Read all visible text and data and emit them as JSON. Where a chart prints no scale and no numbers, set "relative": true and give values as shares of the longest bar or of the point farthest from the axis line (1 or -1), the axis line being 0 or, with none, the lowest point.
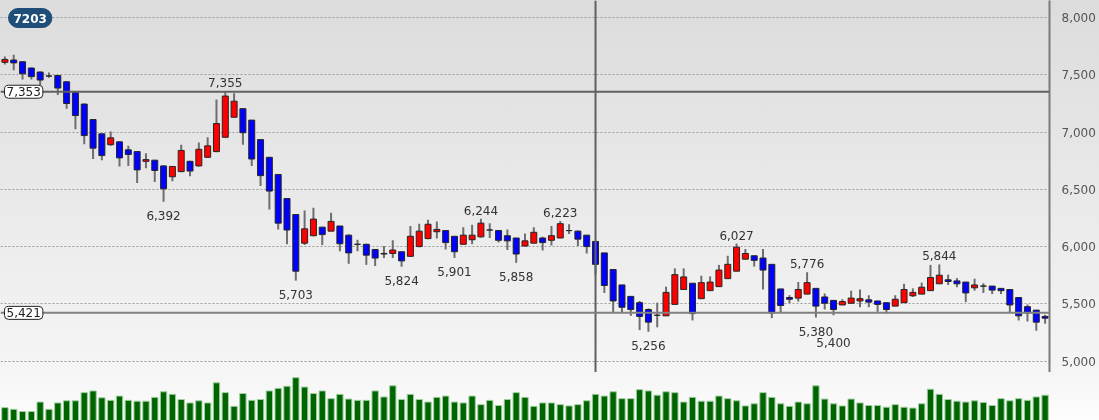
{
  "chart_data": [
    {
      "type": "candlestick",
      "title": "7203",
      "categories": [
        null,
        null,
        null,
        null,
        null,
        null,
        null,
        null,
        null,
        null,
        null,
        null,
        null,
        null,
        null,
        null,
        null,
        null,
        null,
        null,
        null,
        null,
        null,
        null,
        null,
        null,
        null,
        null,
        null,
        null,
        null,
        null,
        null,
        null,
        null,
        null,
        null,
        null,
        null,
        null,
        null,
        null,
        null,
        null,
        null,
        null,
        null,
        null,
        null,
        null,
        null,
        null,
        null,
        null,
        null,
        null,
        null,
        null,
        null,
        null,
        null,
        null,
        null,
        null,
        null,
        null,
        null,
        null,
        null,
        null,
        null,
        null,
        null,
        null,
        null,
        null,
        null,
        null,
        null,
        null,
        null,
        null,
        null,
        null,
        null,
        null,
        null,
        null,
        null,
        null,
        null,
        null,
        null,
        null,
        null,
        null,
        null,
        null,
        null,
        null,
        null,
        null,
        null,
        null,
        null,
        null,
        null,
        null,
        null,
        null,
        null,
        null,
        null,
        null,
        null,
        null,
        null,
        null,
        null
      ],
      "ohlc": [
        [
          7610,
          7660,
          7590,
          7635
        ],
        [
          7630,
          7675,
          7540,
          7605
        ],
        [
          7615,
          7620,
          7460,
          7510
        ],
        [
          7560,
          7565,
          7460,
          7485
        ],
        [
          7525,
          7530,
          7410,
          7455
        ],
        [
          7490,
          7520,
          7475,
          7490
        ],
        [
          7495,
          7500,
          7325,
          7385
        ],
        [
          7440,
          7445,
          7205,
          7250
        ],
        [
          7345,
          7350,
          7025,
          7145
        ],
        [
          7245,
          7250,
          6895,
          6970
        ],
        [
          7110,
          7110,
          6765,
          6860
        ],
        [
          6985,
          6985,
          6755,
          6795
        ],
        [
          6890,
          7005,
          6880,
          6950
        ],
        [
          6915,
          6920,
          6700,
          6775
        ],
        [
          6845,
          6880,
          6705,
          6805
        ],
        [
          6830,
          6830,
          6555,
          6670
        ],
        [
          6745,
          6815,
          6685,
          6760
        ],
        [
          6755,
          6755,
          6565,
          6665
        ],
        [
          6705,
          6710,
          6392,
          6505
        ],
        [
          6610,
          6705,
          6570,
          6700
        ],
        [
          6655,
          6890,
          6650,
          6840
        ],
        [
          6745,
          6750,
          6615,
          6660
        ],
        [
          6705,
          6910,
          6700,
          6850
        ],
        [
          6780,
          6955,
          6775,
          6880
        ],
        [
          6830,
          7285,
          6825,
          7075
        ],
        [
          6955,
          7355,
          6950,
          7315
        ],
        [
          7130,
          7340,
          7130,
          7270
        ],
        [
          7205,
          7205,
          6890,
          6995
        ],
        [
          7105,
          7105,
          6705,
          6765
        ],
        [
          6935,
          6935,
          6530,
          6620
        ],
        [
          6780,
          6780,
          6325,
          6485
        ],
        [
          6630,
          6635,
          6150,
          6205
        ],
        [
          6420,
          6425,
          6020,
          6145
        ],
        [
          6280,
          6285,
          5703,
          5785
        ],
        [
          6030,
          6315,
          6015,
          6155
        ],
        [
          6095,
          6340,
          6090,
          6240
        ],
        [
          6170,
          6170,
          6015,
          6105
        ],
        [
          6135,
          6295,
          6135,
          6220
        ],
        [
          6180,
          6180,
          5960,
          6025
        ],
        [
          6100,
          6105,
          5850,
          5945
        ],
        [
          6020,
          6060,
          5960,
          6020
        ],
        [
          6020,
          6025,
          5840,
          5925
        ],
        [
          5975,
          5980,
          5830,
          5900
        ],
        [
          5935,
          6005,
          5900,
          5940
        ],
        [
          5940,
          6055,
          5900,
          5970
        ],
        [
          5955,
          5955,
          5824,
          5875
        ],
        [
          5915,
          6180,
          5910,
          6090
        ],
        [
          6000,
          6200,
          5995,
          6135
        ],
        [
          6070,
          6235,
          6065,
          6195
        ],
        [
          6130,
          6220,
          6070,
          6150
        ],
        [
          6140,
          6145,
          5975,
          6035
        ],
        [
          6090,
          6090,
          5901,
          5955
        ],
        [
          6020,
          6170,
          6020,
          6100
        ],
        [
          6060,
          6190,
          6020,
          6100
        ],
        [
          6085,
          6244,
          6080,
          6205
        ],
        [
          6145,
          6205,
          6075,
          6145
        ],
        [
          6140,
          6140,
          6035,
          6055
        ],
        [
          6095,
          6150,
          5970,
          6050
        ],
        [
          6075,
          6075,
          5858,
          5935
        ],
        [
          6005,
          6115,
          6000,
          6050
        ],
        [
          6030,
          6170,
          6030,
          6125
        ],
        [
          6075,
          6085,
          5965,
          6035
        ],
        [
          6055,
          6180,
          6010,
          6095
        ],
        [
          6075,
          6223,
          6075,
          6200
        ],
        [
          6140,
          6195,
          6110,
          6140
        ],
        [
          6135,
          6140,
          6005,
          6065
        ],
        [
          6100,
          6100,
          5940,
          6000
        ],
        [
          6045,
          6045,
          5755,
          5845
        ],
        [
          5945,
          5945,
          5595,
          5660
        ],
        [
          5800,
          5800,
          5420,
          5525
        ],
        [
          5665,
          5665,
          5420,
          5470
        ],
        [
          5565,
          5565,
          5395,
          5450
        ],
        [
          5510,
          5525,
          5270,
          5390
        ],
        [
          5450,
          5460,
          5256,
          5340
        ],
        [
          5400,
          5510,
          5295,
          5400
        ],
        [
          5395,
          5650,
          5395,
          5600
        ],
        [
          5495,
          5810,
          5495,
          5755
        ],
        [
          5625,
          5810,
          5625,
          5735
        ],
        [
          5680,
          5680,
          5355,
          5415
        ],
        [
          5545,
          5745,
          5545,
          5685
        ],
        [
          5615,
          5740,
          5615,
          5690
        ],
        [
          5650,
          5840,
          5650,
          5795
        ],
        [
          5720,
          5920,
          5720,
          5845
        ],
        [
          5785,
          6027,
          5785,
          5995
        ],
        [
          5890,
          5980,
          5890,
          5940
        ],
        [
          5920,
          5920,
          5825,
          5880
        ],
        [
          5900,
          5980,
          5625,
          5795
        ],
        [
          5845,
          5845,
          5375,
          5420
        ],
        [
          5630,
          5630,
          5420,
          5485
        ],
        [
          5555,
          5575,
          5505,
          5540
        ],
        [
          5550,
          5690,
          5520,
          5625
        ],
        [
          5585,
          5776,
          5585,
          5685
        ],
        [
          5635,
          5635,
          5380,
          5480
        ],
        [
          5560,
          5590,
          5450,
          5505
        ],
        [
          5530,
          5530,
          5400,
          5450
        ],
        [
          5490,
          5540,
          5490,
          5520
        ],
        [
          5505,
          5615,
          5505,
          5550
        ],
        [
          5525,
          5625,
          5470,
          5545
        ],
        [
          5535,
          5575,
          5470,
          5515
        ],
        [
          5525,
          5525,
          5430,
          5495
        ],
        [
          5510,
          5510,
          5415,
          5450
        ],
        [
          5480,
          5575,
          5480,
          5540
        ],
        [
          5510,
          5675,
          5510,
          5625
        ],
        [
          5570,
          5635,
          5560,
          5600
        ],
        [
          5585,
          5685,
          5585,
          5645
        ],
        [
          5615,
          5840,
          5615,
          5730
        ],
        [
          5675,
          5844,
          5675,
          5750
        ],
        [
          5710,
          5755,
          5665,
          5695
        ],
        [
          5700,
          5725,
          5645,
          5675
        ],
        [
          5690,
          5690,
          5515,
          5595
        ],
        [
          5640,
          5720,
          5615,
          5665
        ],
        [
          5655,
          5680,
          5595,
          5655
        ],
        [
          5655,
          5655,
          5585,
          5620
        ],
        [
          5635,
          5635,
          5585,
          5615
        ],
        [
          5625,
          5625,
          5425,
          5490
        ],
        [
          5555,
          5555,
          5355,
          5395
        ],
        [
          5475,
          5495,
          5345,
          5420
        ],
        [
          5445,
          5445,
          5265,
          5340
        ],
        [
          5390,
          5405,
          5325,
          5375
        ]
      ],
      "colors": [
        "#ff0000",
        "#0000ff",
        "#0000ff",
        "#0000ff",
        "#0000ff",
        "#333333",
        "#0000ff",
        "#0000ff",
        "#0000ff",
        "#0000ff",
        "#0000ff",
        "#0000ff",
        "#ff0000",
        "#0000ff",
        "#0000ff",
        "#0000ff",
        "#ff0000",
        "#0000ff",
        "#0000ff",
        "#ff0000",
        "#ff0000",
        "#0000ff",
        "#ff0000",
        "#ff0000",
        "#ff0000",
        "#ff0000",
        "#ff0000",
        "#0000ff",
        "#0000ff",
        "#0000ff",
        "#0000ff",
        "#0000ff",
        "#0000ff",
        "#0000ff",
        "#ff0000",
        "#ff0000",
        "#0000ff",
        "#ff0000",
        "#0000ff",
        "#0000ff",
        "#333333",
        "#0000ff",
        "#0000ff",
        "#ff0000",
        "#ff0000",
        "#0000ff",
        "#ff0000",
        "#ff0000",
        "#ff0000",
        "#ff0000",
        "#0000ff",
        "#0000ff",
        "#ff0000",
        "#ff0000",
        "#ff0000",
        "#333333",
        "#0000ff",
        "#0000ff",
        "#0000ff",
        "#ff0000",
        "#ff0000",
        "#0000ff",
        "#ff0000",
        "#ff0000",
        "#333333",
        "#0000ff",
        "#0000ff",
        "#0000ff",
        "#0000ff",
        "#0000ff",
        "#0000ff",
        "#0000ff",
        "#0000ff",
        "#0000ff",
        "#333333",
        "#ff0000",
        "#ff0000",
        "#ff0000",
        "#0000ff",
        "#ff0000",
        "#ff0000",
        "#ff0000",
        "#ff0000",
        "#ff0000",
        "#ff0000",
        "#0000ff",
        "#0000ff",
        "#0000ff",
        "#0000ff",
        "#0000ff",
        "#ff0000",
        "#ff0000",
        "#0000ff",
        "#0000ff",
        "#0000ff",
        "#ff0000",
        "#ff0000",
        "#ff0000",
        "#0000ff",
        "#0000ff",
        "#0000ff",
        "#ff0000",
        "#ff0000",
        "#ff0000",
        "#ff0000",
        "#ff0000",
        "#ff0000",
        "#0000ff",
        "#0000ff",
        "#0000ff",
        "#ff0000",
        "#333333",
        "#0000ff",
        "#0000ff",
        "#0000ff",
        "#0000ff",
        "#0000ff",
        "#0000ff",
        "#0000ff"
      ],
      "value_labels": [
        null,
        null,
        null,
        null,
        null,
        null,
        null,
        null,
        null,
        null,
        null,
        null,
        null,
        null,
        null,
        null,
        null,
        null,
        "6,392",
        null,
        null,
        null,
        null,
        null,
        null,
        "7,355",
        null,
        null,
        null,
        null,
        null,
        null,
        null,
        "5,703",
        null,
        null,
        null,
        null,
        null,
        null,
        null,
        null,
        null,
        null,
        null,
        "5,824",
        null,
        null,
        null,
        null,
        null,
        "5,901",
        null,
        null,
        "6,244",
        null,
        null,
        null,
        "5,858",
        null,
        null,
        null,
        null,
        "6,223",
        null,
        null,
        null,
        null,
        null,
        null,
        null,
        null,
        null,
        "5,256",
        null,
        null,
        null,
        null,
        null,
        null,
        null,
        null,
        null,
        "6,027",
        null,
        null,
        null,
        null,
        null,
        null,
        null,
        "5,776",
        "5,380",
        null,
        "5,400",
        null,
        null,
        null,
        null,
        null,
        null,
        null,
        null,
        null,
        null,
        null,
        "5,844",
        null,
        null,
        null,
        null,
        null,
        null,
        null,
        null,
        null,
        null,
        null,
        null
      ],
      "ylim": [
        4900,
        8150
      ],
      "yticks": [
        {
          "value": 5000,
          "label": "5,000"
        },
        {
          "value": 5500,
          "label": "5,500"
        },
        {
          "value": 6000,
          "label": "6,000"
        },
        {
          "value": 6500,
          "label": "6,500"
        },
        {
          "value": 7000,
          "label": "7,000"
        },
        {
          "value": 7500,
          "label": "7,500"
        },
        {
          "value": 8000,
          "label": "8,000"
        }
      ],
      "grid": "y",
      "ref_lines": [
        {
          "axis": "y",
          "value": 7353,
          "label": "7,353",
          "color": "#606060"
        },
        {
          "axis": "y",
          "value": 5421,
          "label": "5,421",
          "color": "#808080"
        }
      ]
    },
    {
      "type": "bar",
      "relative": true,
      "color": "#006400",
      "categories": [
        null,
        null,
        null,
        null,
        null,
        null,
        null,
        null,
        null,
        null,
        null,
        null,
        null,
        null,
        null,
        null,
        null,
        null,
        null,
        null,
        null,
        null,
        null,
        null,
        null,
        null,
        null,
        null,
        null,
        null,
        null,
        null,
        null,
        null,
        null,
        null,
        null,
        null,
        null,
        null,
        null,
        null,
        null,
        null,
        null,
        null,
        null,
        null,
        null,
        null,
        null,
        null,
        null,
        null,
        null,
        null,
        null,
        null,
        null,
        null,
        null,
        null,
        null,
        null,
        null,
        null,
        null,
        null,
        null,
        null,
        null,
        null,
        null,
        null,
        null,
        null,
        null,
        null,
        null,
        null,
        null,
        null,
        null,
        null,
        null,
        null,
        null,
        null,
        null,
        null,
        null,
        null,
        null,
        null,
        null,
        null,
        null,
        null,
        null,
        null,
        null,
        null,
        null,
        null,
        null,
        null,
        null,
        null,
        null,
        null,
        null,
        null,
        null,
        null,
        null,
        null,
        null,
        null,
        null
      ],
      "values": [
        0.3,
        0.26,
        0.21,
        0.21,
        0.43,
        0.26,
        0.41,
        0.46,
        0.46,
        0.65,
        0.69,
        0.53,
        0.47,
        0.57,
        0.47,
        0.45,
        0.45,
        0.54,
        0.67,
        0.61,
        0.49,
        0.41,
        0.46,
        0.41,
        0.88,
        0.65,
        0.33,
        0.63,
        0.47,
        0.49,
        0.69,
        0.75,
        0.8,
        1,
        0.78,
        0.63,
        0.69,
        0.51,
        0.61,
        0.5,
        0.47,
        0.47,
        0.69,
        0.55,
        0.81,
        0.49,
        0.61,
        0.49,
        0.43,
        0.54,
        0.57,
        0.43,
        0.41,
        0.57,
        0.37,
        0.47,
        0.35,
        0.49,
        0.65,
        0.54,
        0.33,
        0.41,
        0.41,
        0.37,
        0.34,
        0.37,
        0.46,
        0.61,
        0.57,
        0.67,
        0.51,
        0.51,
        0.72,
        0.69,
        0.59,
        0.67,
        0.65,
        0.43,
        0.54,
        0.45,
        0.45,
        0.57,
        0.51,
        0.46,
        0.34,
        0.39,
        0.65,
        0.54,
        0.39,
        0.33,
        0.43,
        0.39,
        0.81,
        0.5,
        0.39,
        0.34,
        0.5,
        0.41,
        0.35,
        0.35,
        0.31,
        0.37,
        0.31,
        0.29,
        0.39,
        0.73,
        0.61,
        0.49,
        0.45,
        0.43,
        0.46,
        0.42,
        0.35,
        0.51,
        0.46,
        0.51,
        0.47,
        0.55,
        0.59
      ]
    }
  ]
}
